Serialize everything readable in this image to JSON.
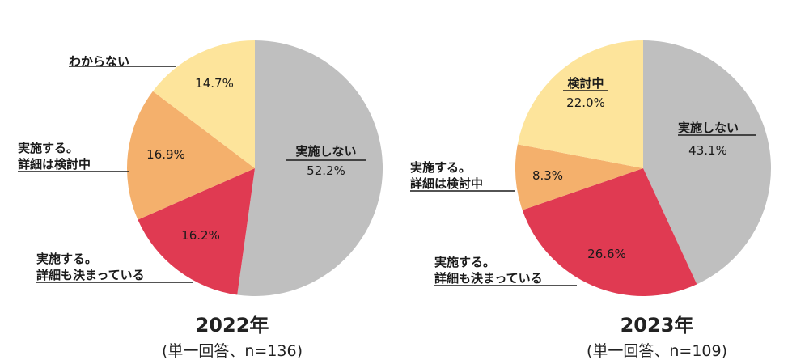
{
  "chart_data": [
    {
      "type": "pie",
      "title": "2022年",
      "subtitle": "(単一回答、n=136)",
      "slices": [
        {
          "label": "実施しない",
          "value": 52.2,
          "display": "52.2%",
          "color": "#bfbfbf"
        },
        {
          "label": "実施する。詳細も決まっている",
          "label_lines": [
            "実施する。",
            "詳細も決まっている"
          ],
          "value": 16.2,
          "display": "16.2%",
          "color": "#e03a52"
        },
        {
          "label": "実施する。詳細は検討中",
          "label_lines": [
            "実施する。",
            "詳細は検討中"
          ],
          "value": 16.9,
          "display": "16.9%",
          "color": "#f4b06c"
        },
        {
          "label": "わからない",
          "value": 14.7,
          "display": "14.7%",
          "color": "#fde49b"
        }
      ]
    },
    {
      "type": "pie",
      "title": "2023年",
      "subtitle": "(単一回答、n=109)",
      "slices": [
        {
          "label": "実施しない",
          "value": 43.1,
          "display": "43.1%",
          "color": "#bfbfbf"
        },
        {
          "label": "実施する。詳細も決まっている",
          "label_lines": [
            "実施する。",
            "詳細も決まっている"
          ],
          "value": 26.6,
          "display": "26.6%",
          "color": "#e03a52"
        },
        {
          "label": "実施する。詳細は検討中",
          "label_lines": [
            "実施する。",
            "詳細は検討中"
          ],
          "value": 8.3,
          "display": "8.3%",
          "color": "#f4b06c"
        },
        {
          "label": "検討中",
          "value": 22.0,
          "display": "22.0%",
          "color": "#fde49b"
        }
      ]
    }
  ]
}
